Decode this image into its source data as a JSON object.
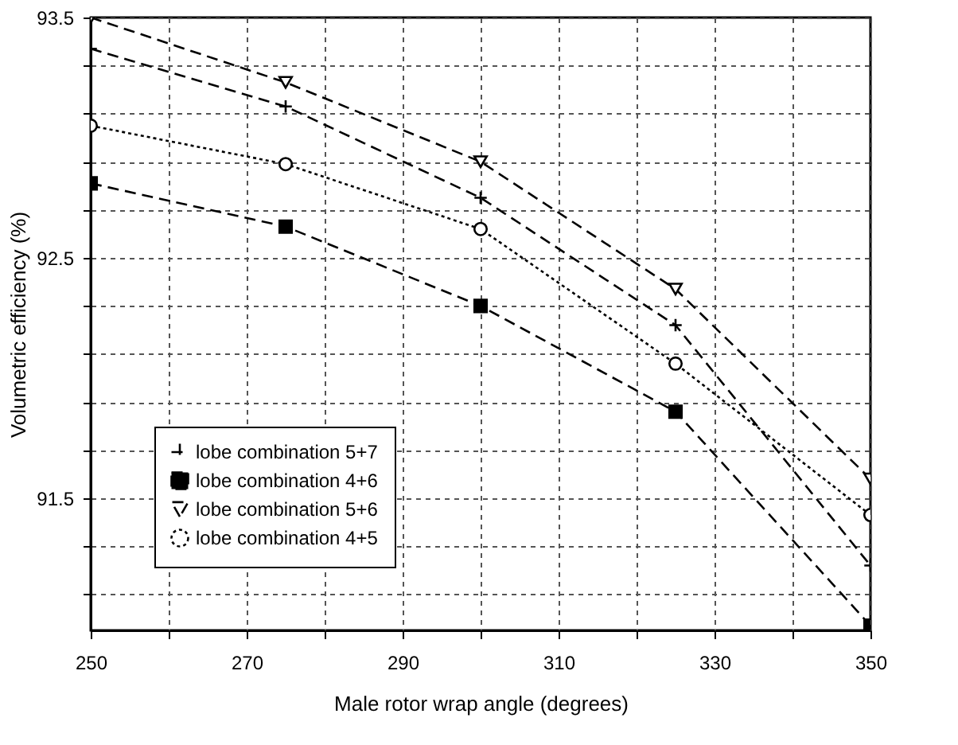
{
  "chart_data": {
    "type": "line",
    "xlabel": "Male rotor wrap angle (degrees)",
    "ylabel": "Volumetric efficiency (%)",
    "x": [
      250,
      275,
      300,
      325,
      350
    ],
    "series": [
      {
        "name": "lobe combination 5+7",
        "color": "#000000",
        "marker": "cross",
        "line_style": "dashed",
        "values": [
          93.37,
          93.13,
          92.75,
          92.22,
          91.22
        ]
      },
      {
        "name": "lobe combination 4+6",
        "color": "#000000",
        "marker": "square",
        "line_style": "dashed",
        "values": [
          92.81,
          92.63,
          92.3,
          91.86,
          90.97
        ]
      },
      {
        "name": "lobe combination 5+6",
        "color": "#000000",
        "marker": "triangle",
        "line_style": "dashed",
        "values": [
          93.5,
          93.23,
          92.9,
          92.37,
          91.58
        ]
      },
      {
        "name": "lobe combination 4+5",
        "color": "#000000",
        "marker": "circle",
        "line_style": "dotted",
        "values": [
          93.05,
          92.89,
          92.62,
          92.06,
          91.43
        ]
      }
    ],
    "xlim": [
      250,
      350
    ],
    "xticks": [
      250,
      {
        "value": 260,
        "label": null
      },
      270,
      {
        "value": 280,
        "label": null
      },
      290,
      {
        "value": 300,
        "label": null
      },
      310,
      {
        "value": 320,
        "label": null
      },
      330,
      {
        "value": 340,
        "label": null
      },
      350
    ],
    "ylim": [
      90.95,
      93.5
    ],
    "yticks": [
      {
        "value": 91.1,
        "label": null
      },
      {
        "value": 91.3,
        "label": null
      },
      91.5,
      {
        "value": 91.7,
        "label": null
      },
      {
        "value": 91.9,
        "label": null
      },
      {
        "value": 92.1,
        "label": null
      },
      {
        "value": 92.3,
        "label": null
      },
      92.5,
      {
        "value": 92.7,
        "label": null
      },
      {
        "value": 92.9,
        "label": null
      },
      {
        "value": 93.1,
        "label": null
      },
      {
        "value": 93.3,
        "label": null
      },
      93.5
    ],
    "grid": true,
    "legend": "bottom left"
  }
}
